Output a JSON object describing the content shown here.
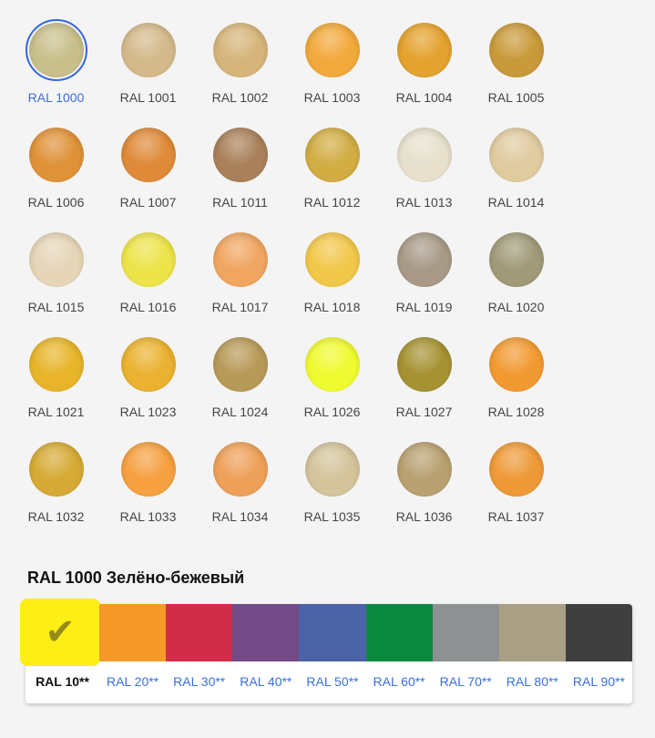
{
  "colors": [
    {
      "label": "RAL 1000",
      "hex": "#c9bf8b",
      "selected": true
    },
    {
      "label": "RAL 1001",
      "hex": "#d4b98a"
    },
    {
      "label": "RAL 1002",
      "hex": "#d6b57a"
    },
    {
      "label": "RAL 1003",
      "hex": "#f2a93b"
    },
    {
      "label": "RAL 1004",
      "hex": "#e4a22e"
    },
    {
      "label": "RAL 1005",
      "hex": "#c99a3a"
    },
    {
      "label": "RAL 1006",
      "hex": "#df9238"
    },
    {
      "label": "RAL 1007",
      "hex": "#df8a38"
    },
    {
      "label": "RAL 1011",
      "hex": "#a9805a"
    },
    {
      "label": "RAL 1012",
      "hex": "#d2ad44"
    },
    {
      "label": "RAL 1013",
      "hex": "#e6e0cc"
    },
    {
      "label": "RAL 1014",
      "hex": "#e0cba0"
    },
    {
      "label": "RAL 1015",
      "hex": "#e6d5b8"
    },
    {
      "label": "RAL 1016",
      "hex": "#ede44a"
    },
    {
      "label": "RAL 1017",
      "hex": "#f0a660"
    },
    {
      "label": "RAL 1018",
      "hex": "#f2c84a"
    },
    {
      "label": "RAL 1019",
      "hex": "#a99a88"
    },
    {
      "label": "RAL 1020",
      "hex": "#a09a78"
    },
    {
      "label": "RAL 1021",
      "hex": "#e8b52a"
    },
    {
      "label": "RAL 1023",
      "hex": "#eab230"
    },
    {
      "label": "RAL 1024",
      "hex": "#b89a58"
    },
    {
      "label": "RAL 1026",
      "hex": "#f0fa30"
    },
    {
      "label": "RAL 1027",
      "hex": "#a69232"
    },
    {
      "label": "RAL 1028",
      "hex": "#f29a32"
    },
    {
      "label": "RAL 1032",
      "hex": "#d6aa34"
    },
    {
      "label": "RAL 1033",
      "hex": "#f6a040"
    },
    {
      "label": "RAL 1034",
      "hex": "#eea058"
    },
    {
      "label": "RAL 1035",
      "hex": "#d4c49c"
    },
    {
      "label": "RAL 1036",
      "hex": "#b8a070"
    },
    {
      "label": "RAL 1037",
      "hex": "#ee9a38"
    }
  ],
  "selected_title": "RAL 1000 Зелёно-бежевый",
  "groups": [
    {
      "label": "RAL 10**",
      "hex": "#fdee15",
      "active": true
    },
    {
      "label": "RAL 20**",
      "hex": "#f59a29"
    },
    {
      "label": "RAL 30**",
      "hex": "#d22c4b"
    },
    {
      "label": "RAL 40**",
      "hex": "#744a88"
    },
    {
      "label": "RAL 50**",
      "hex": "#4a63a6"
    },
    {
      "label": "RAL 60**",
      "hex": "#0a8a3e"
    },
    {
      "label": "RAL 70**",
      "hex": "#8e9192"
    },
    {
      "label": "RAL 80**",
      "hex": "#a89f85"
    },
    {
      "label": "RAL 90**",
      "hex": "#3f3f3f"
    }
  ],
  "check_glyph": "✔"
}
